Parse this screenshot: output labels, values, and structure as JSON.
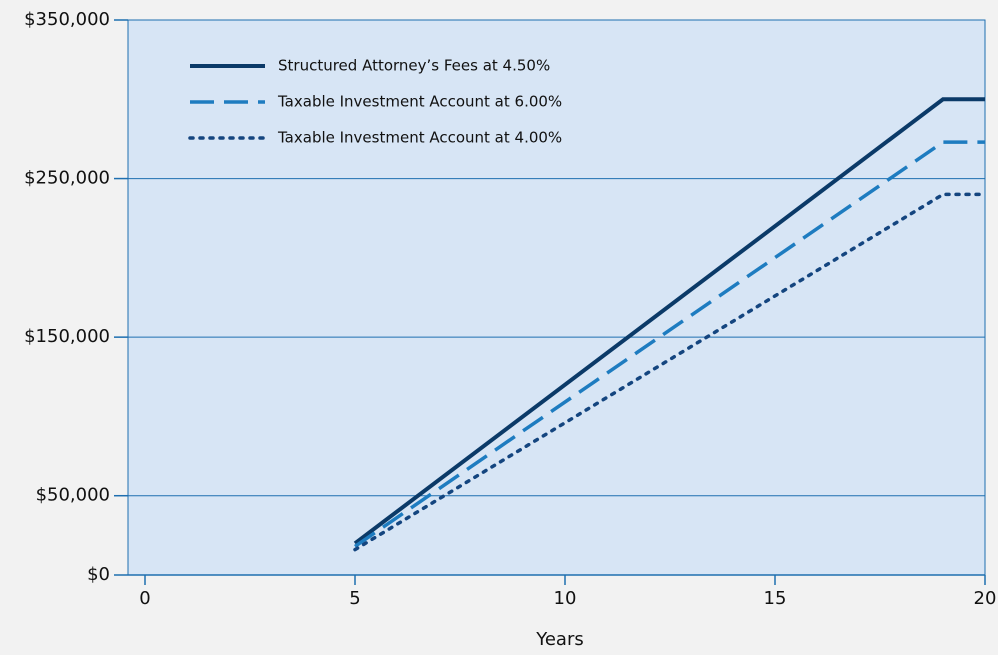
{
  "chart_data": {
    "type": "line",
    "x_label": "Years",
    "x": [
      5,
      19,
      20
    ],
    "series": [
      {
        "name": "Structured Attorney’s Fees at 4.50%",
        "color": "#0b3a68",
        "style": "solid",
        "values": [
          20000,
          300000,
          300000
        ]
      },
      {
        "name": "Taxable Investment Account at 6.00%",
        "color": "#1e7cc0",
        "style": "dashed",
        "values": [
          18000,
          273000,
          273000
        ]
      },
      {
        "name": "Taxable Investment Account at 4.00%",
        "color": "#14457f",
        "style": "dotted",
        "values": [
          16000,
          240000,
          240000
        ]
      }
    ],
    "xlim": [
      0,
      20
    ],
    "xticks": [
      0,
      5,
      10,
      15,
      20
    ],
    "ylim": [
      0,
      350000
    ],
    "yticks": [
      {
        "value": 0,
        "label": "$0"
      },
      {
        "value": 50000,
        "label": "$50,000"
      },
      {
        "value": 150000,
        "label": "$150,000"
      },
      {
        "value": 250000,
        "label": "$250,000"
      },
      {
        "value": 350000,
        "label": "$350,000"
      }
    ],
    "grid": true,
    "legend": "upper left"
  }
}
